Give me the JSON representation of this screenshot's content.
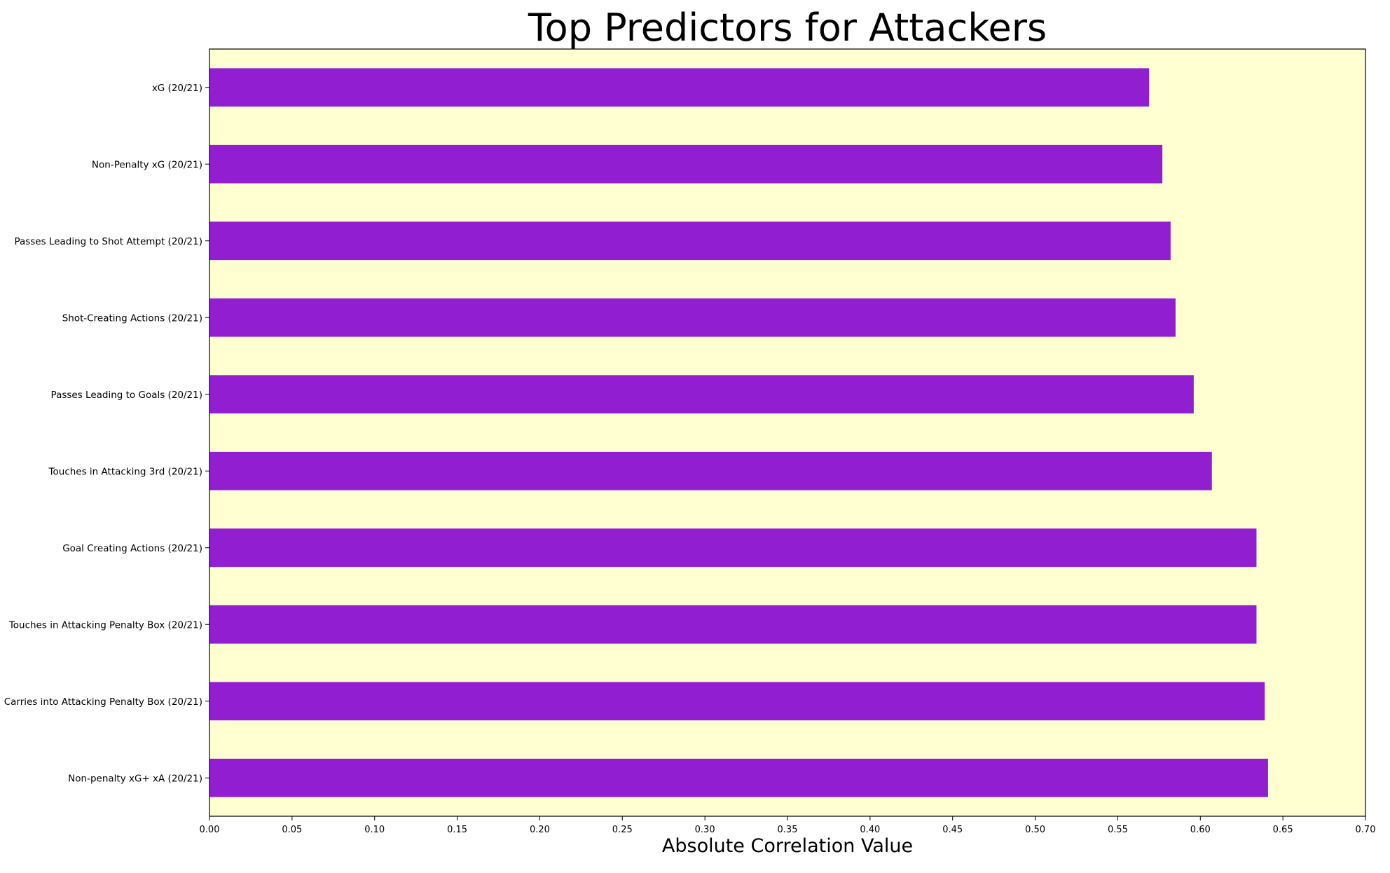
{
  "chart_data": {
    "type": "bar",
    "orientation": "horizontal",
    "title": "Top Predictors for Attackers",
    "xlabel": "Absolute Correlation Value",
    "ylabel": "",
    "xlim": [
      0,
      0.7
    ],
    "xticks": [
      "0.00",
      "0.05",
      "0.10",
      "0.15",
      "0.20",
      "0.25",
      "0.30",
      "0.35",
      "0.40",
      "0.45",
      "0.50",
      "0.55",
      "0.60",
      "0.65",
      "0.70"
    ],
    "categories": [
      "xG (20/21)",
      "Non-Penalty xG (20/21)",
      "Passes Leading to Shot Attempt (20/21)",
      "Shot-Creating Actions (20/21)",
      "Passes Leading to Goals (20/21)",
      "Touches in Attacking 3rd (20/21)",
      "Goal Creating Actions (20/21)",
      "Touches in Attacking Penalty Box (20/21)",
      "Carries into Attacking Penalty Box (20/21)",
      "Non-penalty xG+ xA (20/21)"
    ],
    "values": [
      0.569,
      0.577,
      0.582,
      0.585,
      0.596,
      0.607,
      0.634,
      0.634,
      0.639,
      0.641
    ],
    "bar_color": "#921ed1",
    "background_color": "#ffffd2",
    "grid": false,
    "legend": "none"
  }
}
